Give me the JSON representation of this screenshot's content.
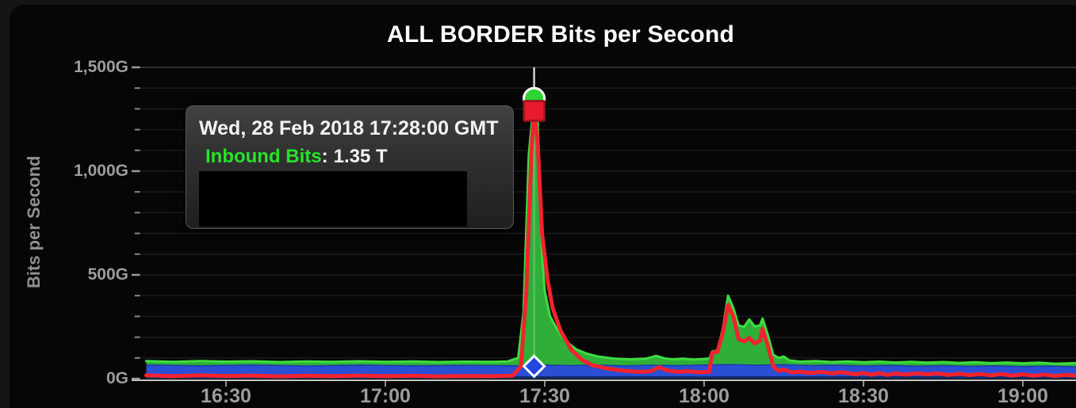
{
  "title": "ALL BORDER Bits per Second",
  "y_axis": {
    "label": "Bits per Second",
    "ticks": [
      {
        "label": "1,500G",
        "value": 1500
      },
      {
        "label": "1,000G",
        "value": 1000
      },
      {
        "label": "500G",
        "value": 500
      },
      {
        "label": "0G",
        "value": 0
      }
    ]
  },
  "x_axis": {
    "ticks": [
      "16:30",
      "17:00",
      "17:30",
      "18:00",
      "18:30",
      "19:00"
    ]
  },
  "tooltip": {
    "date_line": "Wed, 28 Feb 2018 17:28:00 GMT",
    "series_label": "Inbound Bits",
    "separator": ":",
    "value": "1.35 T",
    "redacted_rows": true
  },
  "colors": {
    "background_outer": "#151515",
    "background_panel": "#060606",
    "title_text": "#ffffff",
    "axis_text": "#9c9c9c",
    "axis_line": "#c6c6c6",
    "tick": "#8a8a8a",
    "gridline": "#1b1b1b",
    "gridline_top": "#2e2e2e",
    "inbound_fill": "#2fae38",
    "inbound_edge": "#3ddd3f",
    "red_line": "#f2222f",
    "blue_fill": "#2b4fd4",
    "blue_top_edge": "#1c39ad",
    "blue_bottom_edge": "#132a6e",
    "crosshair": "#cfcfcf",
    "marker_circle_fill": "#2fd334",
    "marker_square_fill": "#e81a2c",
    "marker_square_stroke": "#9e1020",
    "marker_diamond_fill": "#2047e0",
    "marker_stroke_white": "#ffffff",
    "tooltip_green": "#28e228"
  },
  "chart_data": {
    "type": "area",
    "title": "ALL BORDER Bits per Second",
    "xlabel": "",
    "ylabel": "Bits per Second",
    "y_unit": "Gbps",
    "ylim": [
      0,
      1500
    ],
    "y_major_step": 500,
    "y_minor_step": 100,
    "x_range": [
      "16:15",
      "19:10"
    ],
    "x_ticks": [
      "16:30",
      "17:00",
      "17:30",
      "18:00",
      "18:30",
      "19:00"
    ],
    "grid": "horizontal-minor",
    "legend": "none",
    "highlight": {
      "time": "17:28",
      "label": "Wed, 28 Feb 2018 17:28:00 GMT",
      "series": "Inbound Bits",
      "value_display": "1.35 T",
      "inbound_gbps": 1350,
      "red_marker_gbps": 1290,
      "diamond_marker_gbps": 60
    },
    "series": [
      {
        "id": "inbound",
        "name": "Inbound Bits",
        "style": "area",
        "points": [
          [
            "16:15",
            85
          ],
          [
            "16:20",
            81
          ],
          [
            "16:25",
            85
          ],
          [
            "16:30",
            82
          ],
          [
            "16:35",
            84
          ],
          [
            "16:40",
            80
          ],
          [
            "16:45",
            83
          ],
          [
            "16:50",
            81
          ],
          [
            "16:55",
            84
          ],
          [
            "17:00",
            81
          ],
          [
            "17:05",
            83
          ],
          [
            "17:10",
            80
          ],
          [
            "17:15",
            82
          ],
          [
            "17:20",
            81
          ],
          [
            "17:23",
            83
          ],
          [
            "17:25",
            100
          ],
          [
            "17:26",
            320
          ],
          [
            "17:27",
            1080
          ],
          [
            "17:28",
            1350
          ],
          [
            "17:28:40",
            1230
          ],
          [
            "17:29:30",
            600
          ],
          [
            "17:30",
            420
          ],
          [
            "17:31",
            300
          ],
          [
            "17:32:30",
            230
          ],
          [
            "17:34",
            180
          ],
          [
            "17:36",
            140
          ],
          [
            "17:38",
            120
          ],
          [
            "17:40",
            107
          ],
          [
            "17:43",
            97
          ],
          [
            "17:46",
            93
          ],
          [
            "17:49",
            96
          ],
          [
            "17:51",
            110
          ],
          [
            "17:52:30",
            98
          ],
          [
            "17:54",
            93
          ],
          [
            "17:56",
            96
          ],
          [
            "17:58",
            92
          ],
          [
            "18:00",
            95
          ],
          [
            "18:01",
            97
          ],
          [
            "18:01:30",
            130
          ],
          [
            "18:02:30",
            136
          ],
          [
            "18:03:30",
            240
          ],
          [
            "18:04:30",
            400
          ],
          [
            "18:05:30",
            340
          ],
          [
            "18:06:30",
            256
          ],
          [
            "18:07:30",
            250
          ],
          [
            "18:08:30",
            286
          ],
          [
            "18:09:30",
            252
          ],
          [
            "18:10:30",
            256
          ],
          [
            "18:11",
            290
          ],
          [
            "18:12",
            210
          ],
          [
            "18:13",
            116
          ],
          [
            "18:14",
            100
          ],
          [
            "18:15",
            107
          ],
          [
            "18:16",
            88
          ],
          [
            "18:18",
            82
          ],
          [
            "18:21",
            85
          ],
          [
            "18:24",
            80
          ],
          [
            "18:27",
            83
          ],
          [
            "18:30",
            79
          ],
          [
            "18:33",
            82
          ],
          [
            "18:36",
            78
          ],
          [
            "18:39",
            81
          ],
          [
            "18:42",
            77
          ],
          [
            "18:45",
            80
          ],
          [
            "18:48",
            76
          ],
          [
            "18:51",
            79
          ],
          [
            "18:54",
            75
          ],
          [
            "18:57",
            78
          ],
          [
            "19:00",
            74
          ],
          [
            "19:03",
            77
          ],
          [
            "19:06",
            72
          ],
          [
            "19:10",
            75
          ]
        ]
      },
      {
        "id": "red-line",
        "name": "",
        "style": "line",
        "points": [
          [
            "16:15",
            16
          ],
          [
            "16:20",
            12
          ],
          [
            "16:25",
            16
          ],
          [
            "16:30",
            13
          ],
          [
            "16:35",
            15
          ],
          [
            "16:40",
            11
          ],
          [
            "16:45",
            14
          ],
          [
            "16:50",
            12
          ],
          [
            "16:55",
            15
          ],
          [
            "17:00",
            12
          ],
          [
            "17:05",
            14
          ],
          [
            "17:10",
            11
          ],
          [
            "17:15",
            13
          ],
          [
            "17:20",
            12
          ],
          [
            "17:24",
            15
          ],
          [
            "17:25:30",
            60
          ],
          [
            "17:26:30",
            400
          ],
          [
            "17:27:30",
            1100
          ],
          [
            "17:28",
            1290
          ],
          [
            "17:28:40",
            1140
          ],
          [
            "17:29:30",
            700
          ],
          [
            "17:30:30",
            480
          ],
          [
            "17:31:30",
            340
          ],
          [
            "17:33",
            230
          ],
          [
            "17:35",
            140
          ],
          [
            "17:37",
            90
          ],
          [
            "17:39",
            65
          ],
          [
            "17:42",
            48
          ],
          [
            "17:45",
            38
          ],
          [
            "17:48",
            33
          ],
          [
            "17:50",
            36
          ],
          [
            "17:51:30",
            56
          ],
          [
            "17:53",
            40
          ],
          [
            "17:55",
            33
          ],
          [
            "17:57",
            36
          ],
          [
            "17:59",
            31
          ],
          [
            "18:01",
            33
          ],
          [
            "18:01:30",
            124
          ],
          [
            "18:02:30",
            130
          ],
          [
            "18:03:30",
            220
          ],
          [
            "18:04:30",
            355
          ],
          [
            "18:05:30",
            300
          ],
          [
            "18:06:30",
            190
          ],
          [
            "18:07:30",
            180
          ],
          [
            "18:08:30",
            196
          ],
          [
            "18:09:30",
            170
          ],
          [
            "18:10:30",
            182
          ],
          [
            "18:11",
            240
          ],
          [
            "18:12",
            160
          ],
          [
            "18:13",
            60
          ],
          [
            "18:14",
            38
          ],
          [
            "18:15",
            44
          ],
          [
            "18:16:30",
            30
          ],
          [
            "18:18",
            34
          ],
          [
            "18:20",
            27
          ],
          [
            "18:22",
            33
          ],
          [
            "18:24",
            26
          ],
          [
            "18:26",
            31
          ],
          [
            "18:28:30",
            21
          ],
          [
            "18:30",
            28
          ],
          [
            "18:31:30",
            19
          ],
          [
            "18:33",
            27
          ],
          [
            "18:34:30",
            18
          ],
          [
            "18:36",
            25
          ],
          [
            "18:38",
            20
          ],
          [
            "18:40",
            26
          ],
          [
            "18:42",
            21
          ],
          [
            "18:44",
            25
          ],
          [
            "18:46",
            18
          ],
          [
            "18:48",
            24
          ],
          [
            "18:50",
            17
          ],
          [
            "18:52",
            23
          ],
          [
            "18:54",
            16
          ],
          [
            "18:56",
            22
          ],
          [
            "18:58",
            15
          ],
          [
            "19:00",
            21
          ],
          [
            "19:02",
            14
          ],
          [
            "19:04",
            20
          ],
          [
            "19:06",
            13
          ],
          [
            "19:08",
            18
          ],
          [
            "19:10",
            15
          ]
        ]
      },
      {
        "id": "blue-band",
        "name": "",
        "style": "band",
        "bottom_gbps": 6,
        "points": [
          [
            "16:15",
            66
          ],
          [
            "16:25",
            62
          ],
          [
            "16:35",
            66
          ],
          [
            "16:45",
            61
          ],
          [
            "16:55",
            65
          ],
          [
            "17:05",
            62
          ],
          [
            "17:15",
            64
          ],
          [
            "17:25",
            62
          ],
          [
            "17:30",
            66
          ],
          [
            "17:35",
            63
          ],
          [
            "17:40",
            66
          ],
          [
            "17:45",
            62
          ],
          [
            "17:50",
            65
          ],
          [
            "17:55",
            63
          ],
          [
            "18:00",
            66
          ],
          [
            "18:05",
            68
          ],
          [
            "18:10",
            65
          ],
          [
            "18:15",
            67
          ],
          [
            "18:20",
            63
          ],
          [
            "18:25",
            65
          ],
          [
            "18:30",
            61
          ],
          [
            "18:35",
            64
          ],
          [
            "18:40",
            60
          ],
          [
            "18:45",
            63
          ],
          [
            "18:50",
            59
          ],
          [
            "18:55",
            62
          ],
          [
            "19:00",
            58
          ],
          [
            "19:05",
            61
          ],
          [
            "19:10",
            57
          ]
        ]
      }
    ]
  }
}
